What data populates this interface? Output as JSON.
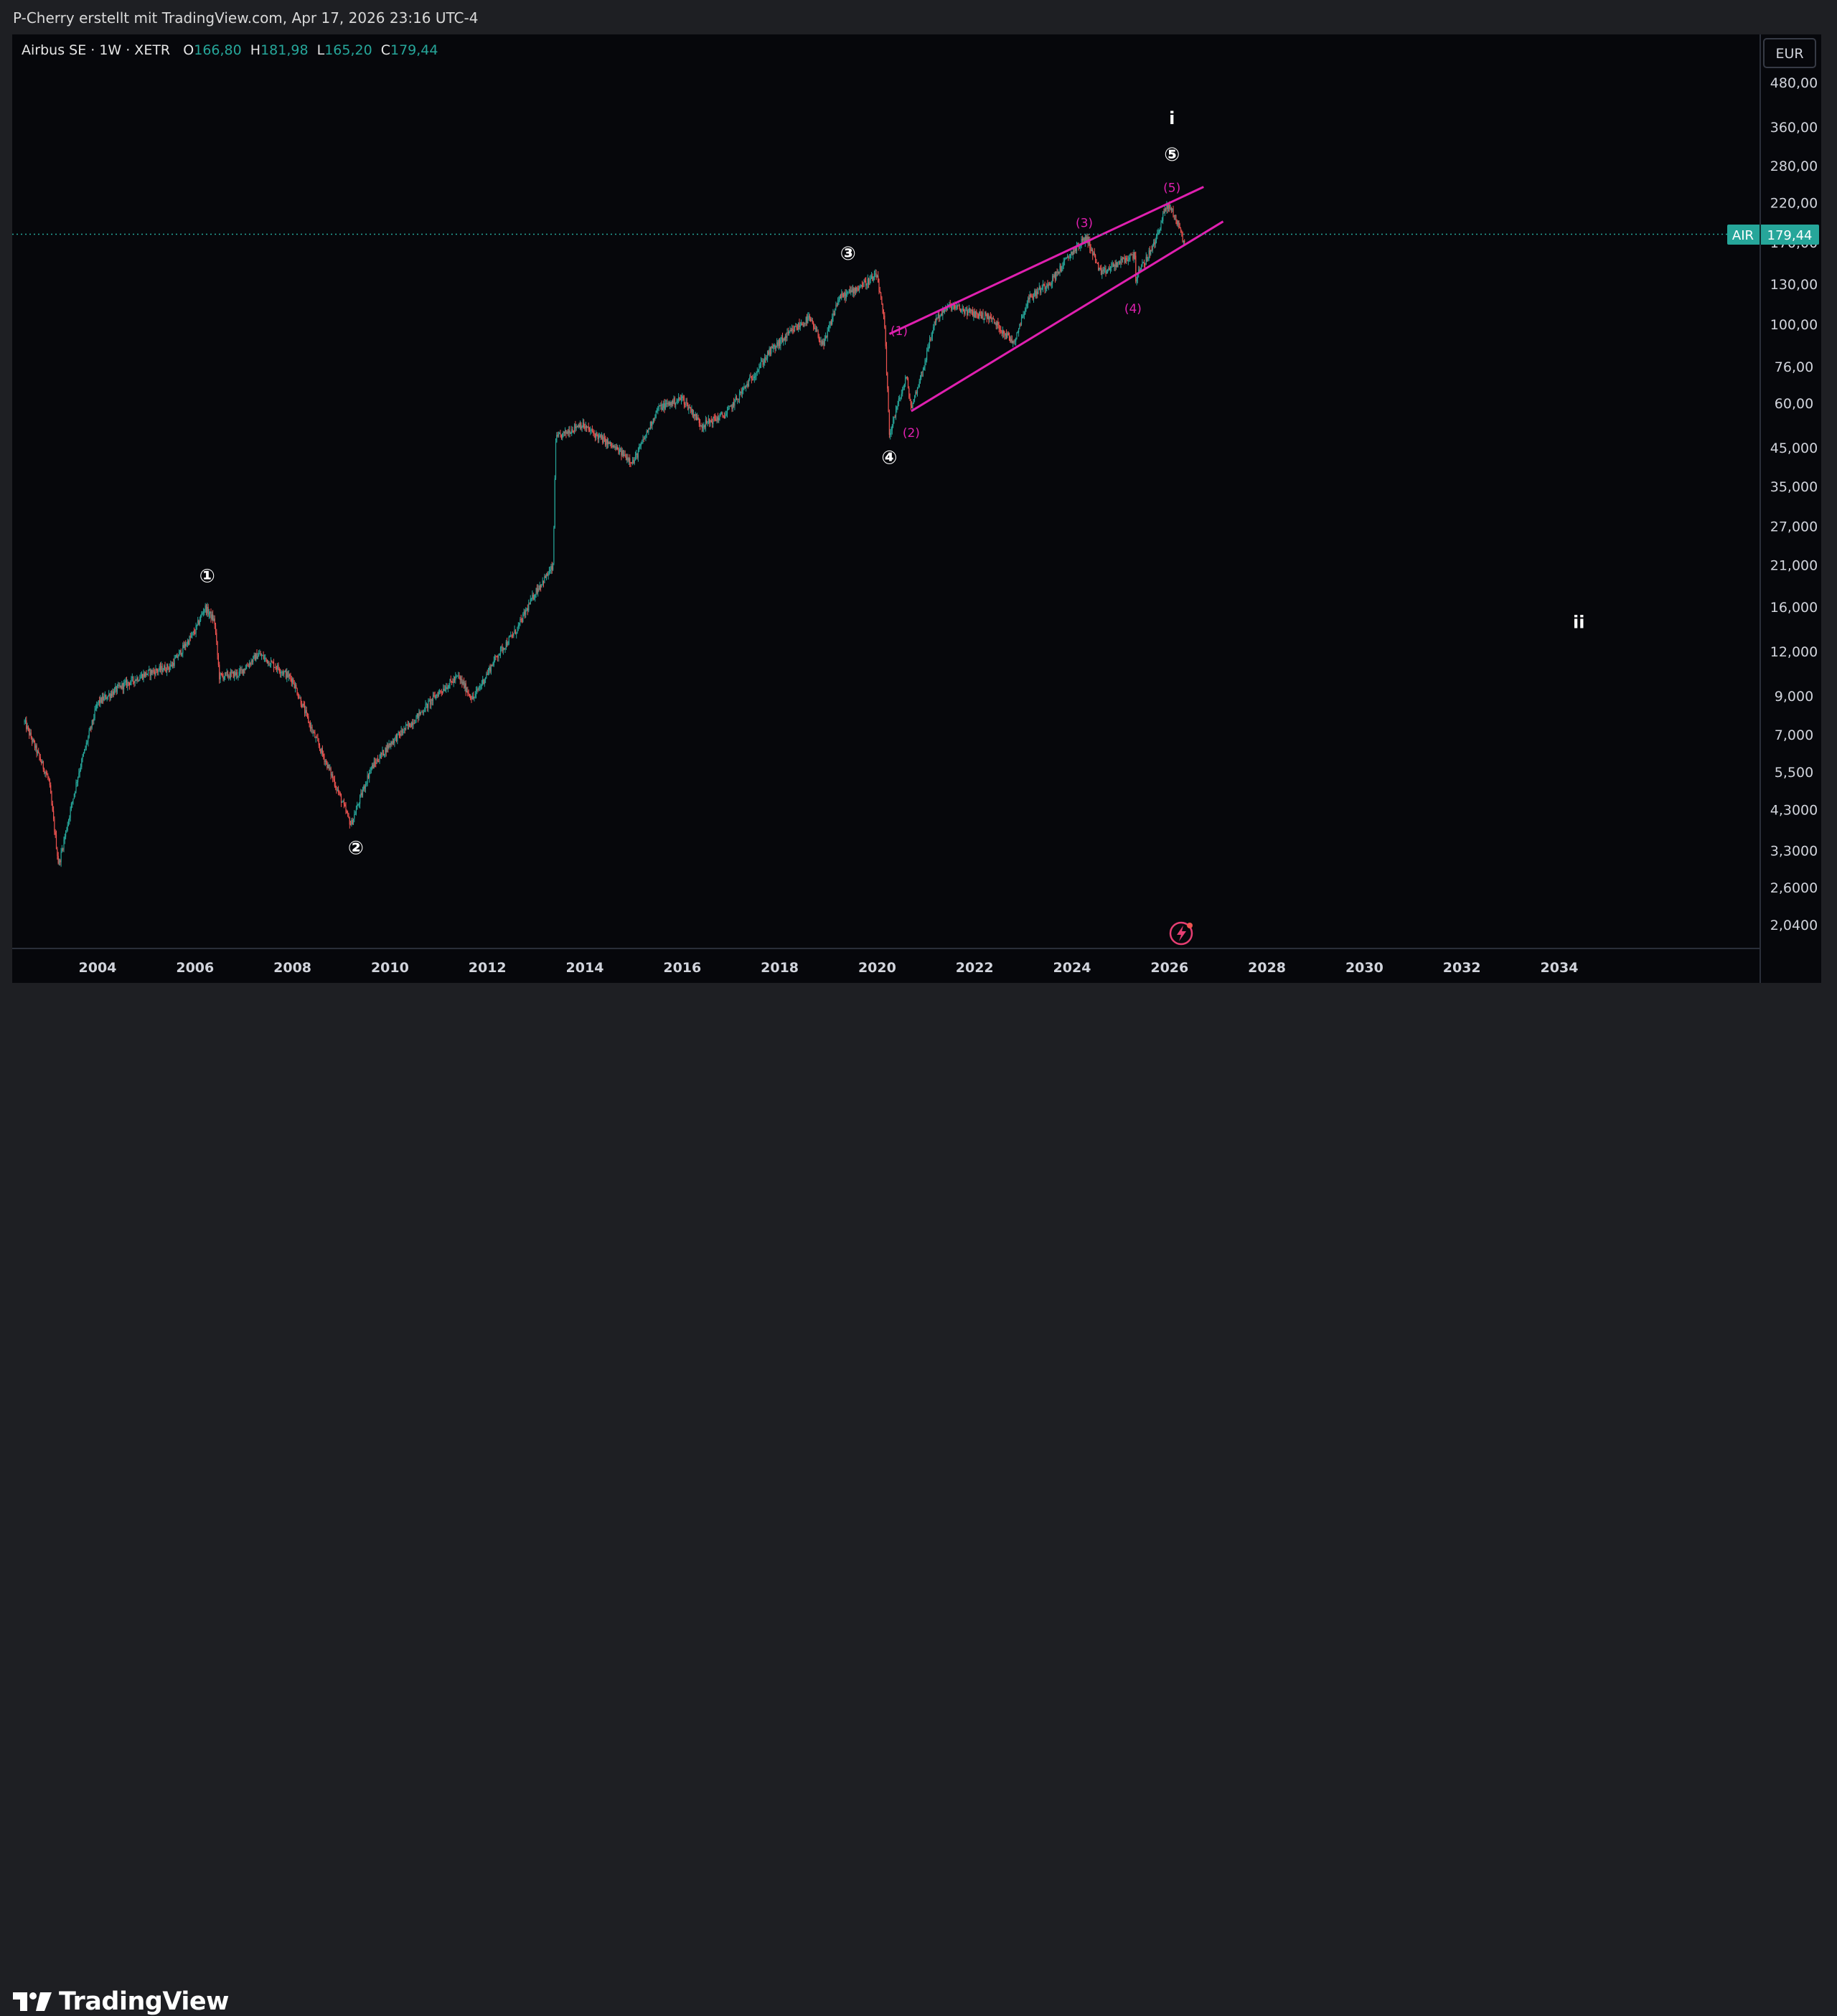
{
  "header": {
    "title": "P-Cherry erstellt mit TradingView.com, Apr 17, 2026 23:16 UTC-4"
  },
  "legend": {
    "symbol": "Airbus SE · 1W · XETR",
    "o_label": "O",
    "o": "166,80",
    "h_label": "H",
    "h": "181,98",
    "l_label": "L",
    "l": "165,20",
    "c_label": "C",
    "c": "179,44"
  },
  "price_tag": {
    "symbol": "AIR",
    "price": "179,44"
  },
  "currency": "EUR",
  "brand": "TradingView",
  "colors": {
    "up": "#26a69a",
    "down": "#ef5350",
    "pattern": "#e020b0",
    "price_line": "#26a69a"
  },
  "chart_data": {
    "type": "candlestick",
    "scale": "log",
    "title": "Airbus SE · 1W · XETR",
    "x_axis": {
      "tick_labels": [
        "2004",
        "2006",
        "2008",
        "2010",
        "2012",
        "2014",
        "2016",
        "2018",
        "2020",
        "2022",
        "2024",
        "2026",
        "2028",
        "2030",
        "2032",
        "2034"
      ]
    },
    "y_axis": {
      "tick_labels": [
        "480,00",
        "360,00",
        "280,00",
        "220,00",
        "170,00",
        "130,00",
        "100,00",
        "76,00",
        "60,00",
        "45,000",
        "35,000",
        "27,000",
        "21,000",
        "16,000",
        "12,000",
        "9,000",
        "7,000",
        "5,500",
        "4,3000",
        "3,3000",
        "2,6000",
        "2,0400"
      ],
      "unit": "EUR"
    },
    "last_price": 179.44,
    "series": [
      {
        "values": [
          [
            2002.5,
            7.6
          ],
          [
            2003.0,
            5.2
          ],
          [
            2003.2,
            3.0
          ],
          [
            2003.6,
            5.4
          ],
          [
            2004.0,
            8.6
          ],
          [
            2004.5,
            9.6
          ],
          [
            2005.0,
            10.4
          ],
          [
            2005.5,
            10.9
          ],
          [
            2006.0,
            13.7
          ],
          [
            2006.2,
            16.0
          ],
          [
            2006.4,
            14.6
          ],
          [
            2006.5,
            10.2
          ],
          [
            2006.9,
            10.4
          ],
          [
            2007.3,
            11.8
          ],
          [
            2007.7,
            10.8
          ],
          [
            2008.0,
            10.0
          ],
          [
            2008.4,
            7.2
          ],
          [
            2008.8,
            5.4
          ],
          [
            2009.2,
            3.9
          ],
          [
            2009.6,
            5.6
          ],
          [
            2010.0,
            6.6
          ],
          [
            2010.5,
            7.7
          ],
          [
            2011.0,
            9.2
          ],
          [
            2011.4,
            10.2
          ],
          [
            2011.7,
            8.8
          ],
          [
            2012.2,
            11.7
          ],
          [
            2012.6,
            13.8
          ],
          [
            2013.0,
            17.8
          ],
          [
            2013.35,
            20.8
          ],
          [
            2013.4,
            47.5
          ],
          [
            2013.9,
            52.5
          ],
          [
            2014.6,
            45.0
          ],
          [
            2015.0,
            41.0
          ],
          [
            2015.5,
            58.0
          ],
          [
            2016.0,
            62.0
          ],
          [
            2016.4,
            52.0
          ],
          [
            2016.9,
            56.0
          ],
          [
            2017.4,
            70.0
          ],
          [
            2017.8,
            84.0
          ],
          [
            2018.3,
            97.0
          ],
          [
            2018.6,
            104.0
          ],
          [
            2018.9,
            87.0
          ],
          [
            2019.2,
            118.0
          ],
          [
            2019.6,
            127.0
          ],
          [
            2020.0,
            137.0
          ],
          [
            2020.15,
            100.0
          ],
          [
            2020.25,
            49.0
          ],
          [
            2020.4,
            58.0
          ],
          [
            2020.6,
            71.0
          ],
          [
            2020.7,
            58.0
          ],
          [
            2020.95,
            76.0
          ],
          [
            2021.2,
            104.0
          ],
          [
            2021.5,
            113.0
          ],
          [
            2021.9,
            108.0
          ],
          [
            2022.3,
            105.0
          ],
          [
            2022.8,
            89.0
          ],
          [
            2023.1,
            118.0
          ],
          [
            2023.6,
            134.0
          ],
          [
            2024.0,
            160.0
          ],
          [
            2024.3,
            176.0
          ],
          [
            2024.6,
            138.0
          ],
          [
            2024.8,
            145.0
          ],
          [
            2025.3,
            158.0
          ],
          [
            2025.3,
            134.0
          ],
          [
            2025.7,
            170.0
          ],
          [
            2025.9,
            210.0
          ],
          [
            2026.0,
            215.0
          ],
          [
            2026.2,
            190.0
          ],
          [
            2026.3,
            166.8
          ],
          [
            2026.32,
            179.44
          ]
        ]
      }
    ],
    "annotations": [
      {
        "label": "①",
        "x": 2006.25,
        "price": 19.5
      },
      {
        "label": "②",
        "x": 2009.3,
        "price": 3.35
      },
      {
        "label": "③",
        "x": 2019.4,
        "price": 158
      },
      {
        "label": "④",
        "x": 2020.25,
        "price": 42
      },
      {
        "label": "⑤",
        "x": 2026.05,
        "price": 300
      },
      {
        "label": "i",
        "x": 2026.05,
        "price": 380
      },
      {
        "label": "ii",
        "x": 2034.4,
        "price": 14.5
      },
      {
        "label": "(1)",
        "x": 2020.45,
        "price": 97
      },
      {
        "label": "(2)",
        "x": 2020.7,
        "price": 50
      },
      {
        "label": "(3)",
        "x": 2024.25,
        "price": 195
      },
      {
        "label": "(4)",
        "x": 2025.25,
        "price": 112
      },
      {
        "label": "(5)",
        "x": 2026.05,
        "price": 245
      }
    ],
    "trendlines": [
      {
        "from": [
          2020.25,
          94
        ],
        "to": [
          2026.7,
          244
        ]
      },
      {
        "from": [
          2020.7,
          57
        ],
        "to": [
          2027.1,
          195
        ]
      }
    ]
  }
}
